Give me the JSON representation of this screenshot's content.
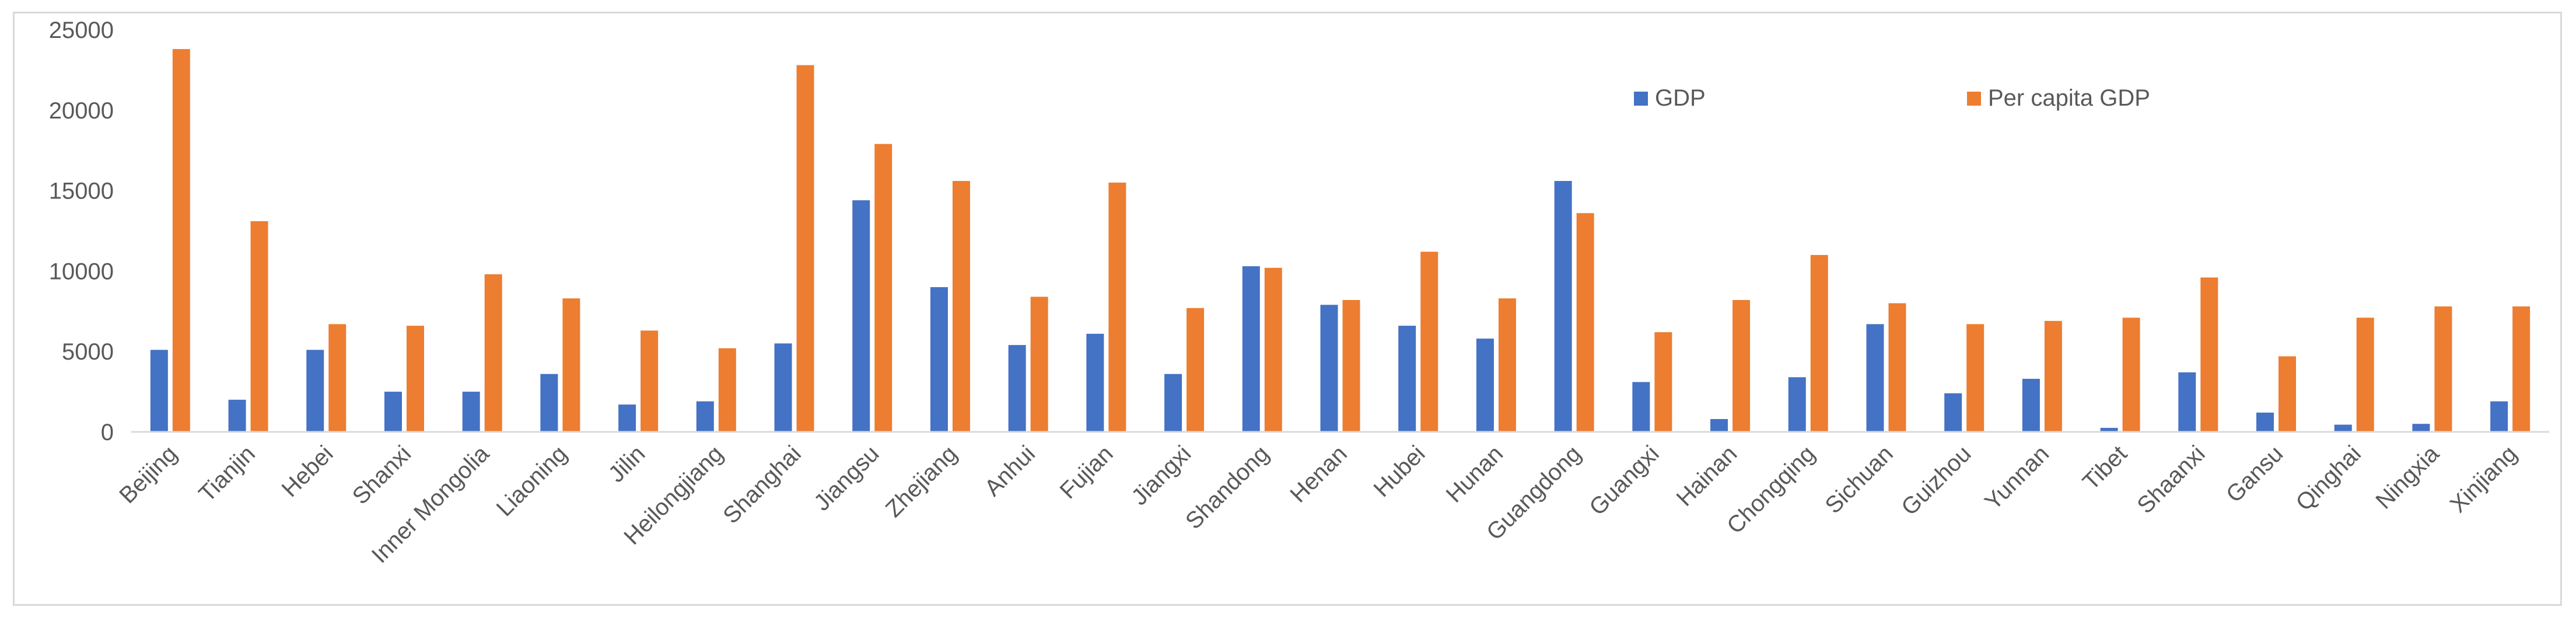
{
  "chart_data": {
    "type": "bar",
    "title": "",
    "xlabel": "",
    "ylabel": "",
    "ylim": [
      0,
      25000
    ],
    "yticks": [
      0,
      5000,
      10000,
      15000,
      20000,
      25000
    ],
    "grid": false,
    "legend_position": "top-right",
    "categories": [
      "Beijing",
      "Tianjin",
      "Hebei",
      "Shanxi",
      "Inner Mongolia",
      "Liaoning",
      "Jilin",
      "Heilongjiang",
      "Shanghai",
      "Jiangsu",
      "Zhejiang",
      "Anhui",
      "Fujian",
      "Jiangxi",
      "Shandong",
      "Henan",
      "Hubei",
      "Hunan",
      "Guangdong",
      "Guangxi",
      "Hainan",
      "Chongqing",
      "Sichuan",
      "Guizhou",
      "Yunnan",
      "Tibet",
      "Shaanxi",
      "Gansu",
      "Qinghai",
      "Ningxia",
      "Xinjiang"
    ],
    "series": [
      {
        "name": "GDP",
        "color": "#4472c4",
        "values": [
          5100,
          2000,
          5100,
          2500,
          2500,
          3600,
          1700,
          1900,
          5500,
          14400,
          9000,
          5400,
          6100,
          3600,
          10300,
          7900,
          6600,
          5800,
          15600,
          3100,
          800,
          3400,
          6700,
          2400,
          3300,
          250,
          3700,
          1200,
          450,
          500,
          1900
        ]
      },
      {
        "name": "Per capita GDP",
        "color": "#ed7d31",
        "values": [
          23800,
          13100,
          6700,
          6600,
          9800,
          8300,
          6300,
          5200,
          22800,
          17900,
          15600,
          8400,
          15500,
          7700,
          10200,
          8200,
          11200,
          8300,
          13600,
          6200,
          8200,
          11000,
          8000,
          6700,
          6900,
          7100,
          9600,
          4700,
          7100,
          7800,
          7800
        ]
      }
    ]
  }
}
